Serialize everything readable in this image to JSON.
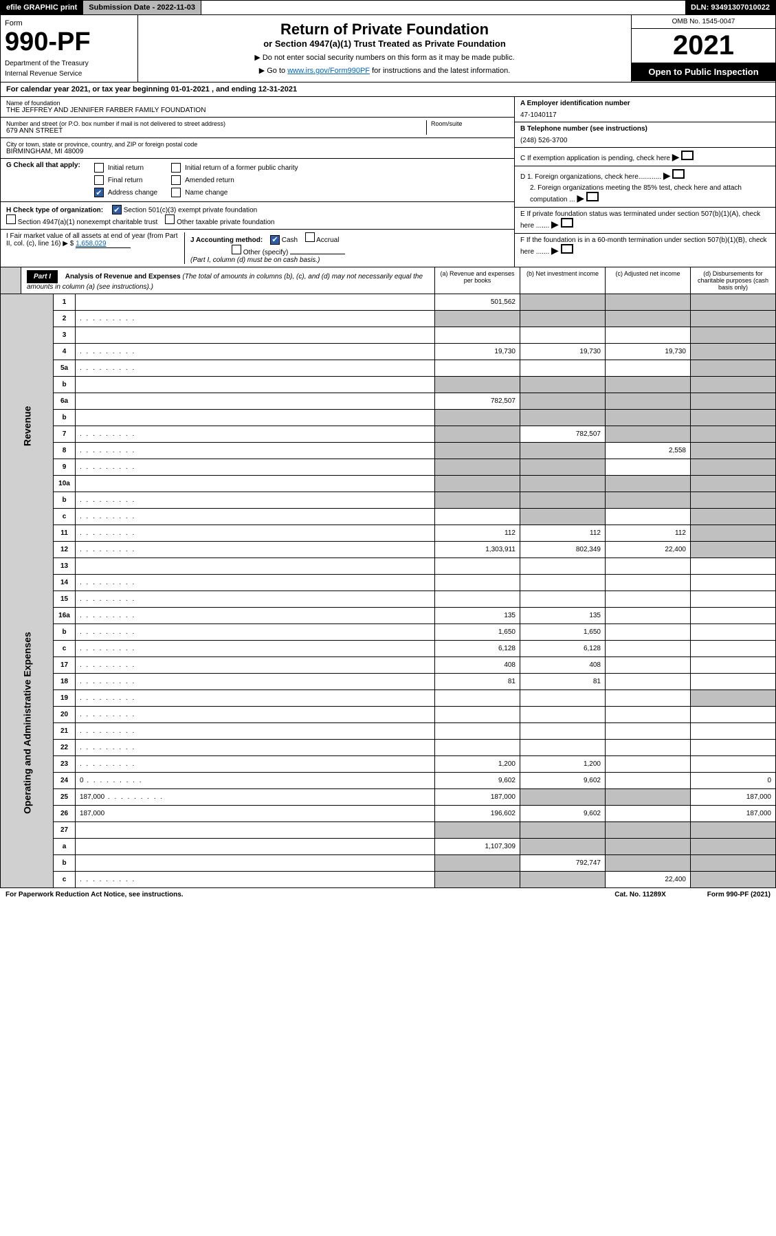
{
  "header": {
    "efile": "efile GRAPHIC print",
    "submission_label": "Submission Date - 2022-11-03",
    "dln": "DLN: 93491307010022",
    "form_label": "Form",
    "form_number": "990-PF",
    "dept1": "Department of the Treasury",
    "dept2": "Internal Revenue Service",
    "title": "Return of Private Foundation",
    "subtitle": "or Section 4947(a)(1) Trust Treated as Private Foundation",
    "note1": "▶ Do not enter social security numbers on this form as it may be made public.",
    "note2_pre": "▶ Go to ",
    "note2_link": "www.irs.gov/Form990PF",
    "note2_post": " for instructions and the latest information.",
    "omb": "OMB No. 1545-0047",
    "year": "2021",
    "open": "Open to Public Inspection"
  },
  "cal_year": "For calendar year 2021, or tax year beginning 01-01-2021                          , and ending 12-31-2021",
  "foundation": {
    "name_label": "Name of foundation",
    "name": "THE JEFFREY AND JENNIFER FARBER FAMILY FOUNDATION",
    "addr_label": "Number and street (or P.O. box number if mail is not delivered to street address)",
    "addr": "679 ANN STREET",
    "room_label": "Room/suite",
    "city_label": "City or town, state or province, country, and ZIP or foreign postal code",
    "city": "BIRMINGHAM, MI  48009"
  },
  "right_info": {
    "a_label": "A Employer identification number",
    "a_val": "47-1040117",
    "b_label": "B Telephone number (see instructions)",
    "b_val": "(248) 526-3700",
    "c_label": "C If exemption application is pending, check here",
    "d1": "D 1. Foreign organizations, check here............",
    "d2": "2. Foreign organizations meeting the 85% test, check here and attach computation ...",
    "e_label": "E  If private foundation status was terminated under section 507(b)(1)(A), check here .......",
    "f_label": "F  If the foundation is in a 60-month termination under section 507(b)(1)(B), check here ......."
  },
  "g": {
    "label": "G Check all that apply:",
    "opts": [
      "Initial return",
      "Final return",
      "Address change",
      "Initial return of a former public charity",
      "Amended return",
      "Name change"
    ]
  },
  "h": {
    "label": "H Check type of organization:",
    "opt1": "Section 501(c)(3) exempt private foundation",
    "opt2": "Section 4947(a)(1) nonexempt charitable trust",
    "opt3": "Other taxable private foundation"
  },
  "i": {
    "label": "I Fair market value of all assets at end of year (from Part II, col. (c), line 16) ▶ $",
    "val": "1,658,029"
  },
  "j": {
    "label": "J Accounting method:",
    "cash": "Cash",
    "accrual": "Accrual",
    "other": "Other (specify)",
    "note": "(Part I, column (d) must be on cash basis.)"
  },
  "part1": {
    "label": "Part I",
    "title": "Analysis of Revenue and Expenses",
    "title_note": "(The total of amounts in columns (b), (c), and (d) may not necessarily equal the amounts in column (a) (see instructions).)",
    "col_a": "(a)   Revenue and expenses per books",
    "col_b": "(b)   Net investment income",
    "col_c": "(c)   Adjusted net income",
    "col_d": "(d)   Disbursements for charitable purposes (cash basis only)"
  },
  "side_labels": {
    "revenue": "Revenue",
    "expenses": "Operating and Administrative Expenses"
  },
  "rows": [
    {
      "n": "1",
      "d": "",
      "a": "501,562",
      "b": "",
      "c": "",
      "bs": true,
      "cs": true,
      "ds": true
    },
    {
      "n": "2",
      "d": "",
      "dots": true,
      "a": "",
      "b": "",
      "c": "",
      "as": true,
      "bs": true,
      "cs": true,
      "ds": true
    },
    {
      "n": "3",
      "d": "",
      "a": "",
      "b": "",
      "c": "",
      "ds": true
    },
    {
      "n": "4",
      "d": "",
      "dots": true,
      "a": "19,730",
      "b": "19,730",
      "c": "19,730",
      "ds": true
    },
    {
      "n": "5a",
      "d": "",
      "dots": true,
      "a": "",
      "b": "",
      "c": "",
      "ds": true
    },
    {
      "n": "b",
      "d": "",
      "a": "",
      "b": "",
      "c": "",
      "as": true,
      "bs": true,
      "cs": true,
      "ds": true
    },
    {
      "n": "6a",
      "d": "",
      "a": "782,507",
      "b": "",
      "c": "",
      "bs": true,
      "cs": true,
      "ds": true
    },
    {
      "n": "b",
      "d": "",
      "a": "",
      "b": "",
      "c": "",
      "as": true,
      "bs": true,
      "cs": true,
      "ds": true
    },
    {
      "n": "7",
      "d": "",
      "dots": true,
      "a": "",
      "b": "782,507",
      "c": "",
      "as": true,
      "cs": true,
      "ds": true
    },
    {
      "n": "8",
      "d": "",
      "dots": true,
      "a": "",
      "b": "",
      "c": "2,558",
      "as": true,
      "bs": true,
      "ds": true
    },
    {
      "n": "9",
      "d": "",
      "dots": true,
      "a": "",
      "b": "",
      "c": "",
      "as": true,
      "bs": true,
      "ds": true
    },
    {
      "n": "10a",
      "d": "",
      "a": "",
      "b": "",
      "c": "",
      "as": true,
      "bs": true,
      "cs": true,
      "ds": true
    },
    {
      "n": "b",
      "d": "",
      "dots": true,
      "a": "",
      "b": "",
      "c": "",
      "as": true,
      "bs": true,
      "cs": true,
      "ds": true
    },
    {
      "n": "c",
      "d": "",
      "dots": true,
      "a": "",
      "b": "",
      "c": "",
      "bs": true,
      "ds": true
    },
    {
      "n": "11",
      "d": "",
      "dots": true,
      "a": "112",
      "b": "112",
      "c": "112",
      "ds": true
    },
    {
      "n": "12",
      "d": "",
      "dots": true,
      "a": "1,303,911",
      "b": "802,349",
      "c": "22,400",
      "ds": true
    },
    {
      "n": "13",
      "d": "",
      "a": "",
      "b": "",
      "c": ""
    },
    {
      "n": "14",
      "d": "",
      "dots": true,
      "a": "",
      "b": "",
      "c": ""
    },
    {
      "n": "15",
      "d": "",
      "dots": true,
      "a": "",
      "b": "",
      "c": ""
    },
    {
      "n": "16a",
      "d": "",
      "dots": true,
      "a": "135",
      "b": "135",
      "c": ""
    },
    {
      "n": "b",
      "d": "",
      "dots": true,
      "a": "1,650",
      "b": "1,650",
      "c": ""
    },
    {
      "n": "c",
      "d": "",
      "dots": true,
      "a": "6,128",
      "b": "6,128",
      "c": ""
    },
    {
      "n": "17",
      "d": "",
      "dots": true,
      "a": "408",
      "b": "408",
      "c": ""
    },
    {
      "n": "18",
      "d": "",
      "dots": true,
      "a": "81",
      "b": "81",
      "c": ""
    },
    {
      "n": "19",
      "d": "",
      "dots": true,
      "a": "",
      "b": "",
      "c": "",
      "ds": true
    },
    {
      "n": "20",
      "d": "",
      "dots": true,
      "a": "",
      "b": "",
      "c": ""
    },
    {
      "n": "21",
      "d": "",
      "dots": true,
      "a": "",
      "b": "",
      "c": ""
    },
    {
      "n": "22",
      "d": "",
      "dots": true,
      "a": "",
      "b": "",
      "c": ""
    },
    {
      "n": "23",
      "d": "",
      "dots": true,
      "a": "1,200",
      "b": "1,200",
      "c": ""
    },
    {
      "n": "24",
      "d": "0",
      "dots": true,
      "a": "9,602",
      "b": "9,602",
      "c": ""
    },
    {
      "n": "25",
      "d": "187,000",
      "dots": true,
      "a": "187,000",
      "b": "",
      "c": "",
      "bs": true,
      "cs": true
    },
    {
      "n": "26",
      "d": "187,000",
      "a": "196,602",
      "b": "9,602",
      "c": ""
    },
    {
      "n": "27",
      "d": "",
      "a": "",
      "b": "",
      "c": "",
      "as": true,
      "bs": true,
      "cs": true,
      "ds": true
    },
    {
      "n": "a",
      "d": "",
      "a": "1,107,309",
      "b": "",
      "c": "",
      "bs": true,
      "cs": true,
      "ds": true
    },
    {
      "n": "b",
      "d": "",
      "a": "",
      "b": "792,747",
      "c": "",
      "as": true,
      "cs": true,
      "ds": true
    },
    {
      "n": "c",
      "d": "",
      "dots": true,
      "a": "",
      "b": "",
      "c": "22,400",
      "as": true,
      "bs": true,
      "ds": true
    }
  ],
  "footer": {
    "left": "For Paperwork Reduction Act Notice, see instructions.",
    "mid": "Cat. No. 11289X",
    "right": "Form 990-PF (2021)"
  }
}
